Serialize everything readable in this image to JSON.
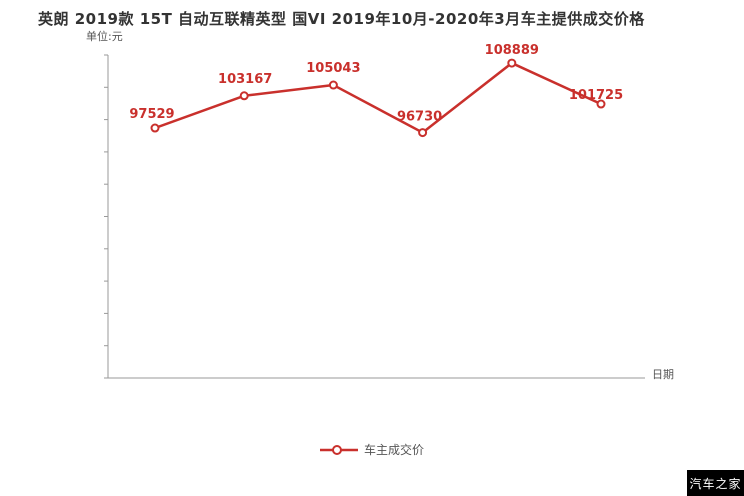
{
  "page": {
    "title": "英朗 2019款 15T 自动互联精英型 国VI 2019年10月-2020年3月车主提供成交价格",
    "watermark": "汽车之家"
  },
  "chart": {
    "unit_label": "单位:元",
    "x_axis_label": "日期",
    "legend": {
      "label": "车主成交价"
    },
    "colors": {
      "line": "#c9302c",
      "point_label": "#c9302c",
      "axis": "#999999",
      "title": "#333333",
      "legend_text": "#555555",
      "watermark_bg": "#000000",
      "watermark_text": "#ffffff"
    }
  },
  "chart_data": {
    "type": "line",
    "title": "英朗 2019款 15T 自动互联精英型 国VI 2019年10月-2020年3月车主提供成交价格",
    "ylabel": "单位:元",
    "xlabel": "日期",
    "legend": [
      "车主成交价"
    ],
    "legend_position": "bottom",
    "grid": false,
    "marker": "open-circle",
    "ylim": [
      53800,
      110300
    ],
    "series": [
      {
        "name": "车主成交价",
        "values": [
          97529,
          103167,
          105043,
          96730,
          108889,
          101725
        ]
      }
    ],
    "point_labels": [
      "97529",
      "103167",
      "105043",
      "96730",
      "108889",
      "101725"
    ]
  }
}
